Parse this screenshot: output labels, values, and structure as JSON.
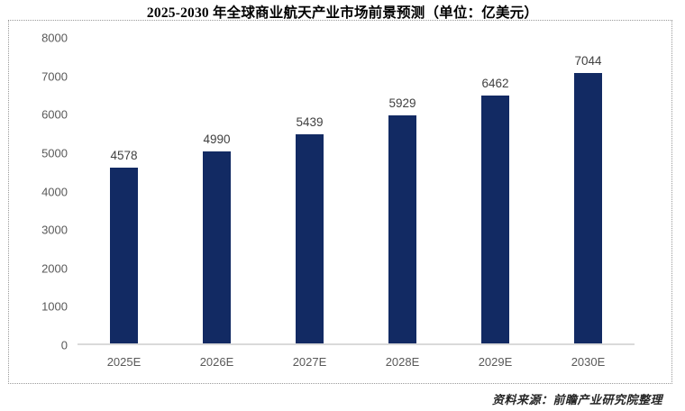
{
  "title": "2025-2030 年全球商业航天产业市场前景预测（单位：亿美元）",
  "source_note": "资料来源：前瞻产业研究院整理",
  "colors": {
    "bar": "#122a63",
    "axis_line": "#dadada",
    "tick_label": "#595959",
    "value_label": "#404040",
    "box_border": "#9a9a9a",
    "title_text": "#000000"
  },
  "chart_data": {
    "type": "bar",
    "title": "2025-2030 年全球商业航天产业市场前景预测（单位：亿美元）",
    "categories": [
      "2025E",
      "2026E",
      "2027E",
      "2028E",
      "2029E",
      "2030E"
    ],
    "values": [
      4578,
      4990,
      5439,
      5929,
      6462,
      7044
    ],
    "xlabel": "",
    "ylabel": "",
    "ylim": [
      0,
      8000
    ],
    "yticks": [
      0,
      1000,
      2000,
      3000,
      4000,
      5000,
      6000,
      7000,
      8000
    ],
    "grid": false,
    "legend_position": "none",
    "value_labels_shown": true,
    "unit": "亿美元"
  }
}
